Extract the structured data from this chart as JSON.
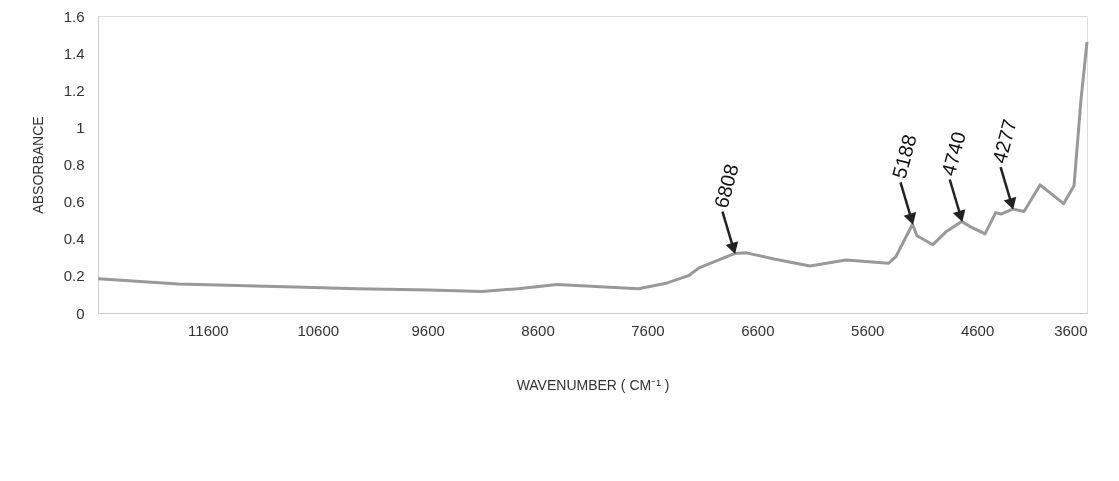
{
  "chart_data": {
    "type": "line",
    "xlabel": "WAVENUMBER ( CM⁻¹ )",
    "ylabel": "ABSORBANCE",
    "x": [
      12600,
      11867,
      10889,
      10243,
      9592,
      9106,
      8778,
      8423,
      8068,
      7681,
      7420,
      7226,
      7131,
      6808,
      6700,
      6448,
      6121,
      5793,
      5405,
      5341,
      5188,
      5147,
      5002,
      4886,
      4740,
      4659,
      4528,
      4431,
      4383,
      4277,
      4173,
      4027,
      3813,
      3718,
      3655,
      3600
    ],
    "series": [
      {
        "color": "#999999",
        "values": [
          0.185,
          0.156,
          0.141,
          0.131,
          0.124,
          0.116,
          0.131,
          0.153,
          0.143,
          0.131,
          0.162,
          0.201,
          0.243,
          0.32,
          0.324,
          0.291,
          0.253,
          0.286,
          0.268,
          0.302,
          0.478,
          0.416,
          0.368,
          0.436,
          0.493,
          0.464,
          0.426,
          0.541,
          0.533,
          0.56,
          0.547,
          0.69,
          0.589,
          0.686,
          1.148,
          1.46
        ]
      }
    ],
    "xlim": [
      12600,
      3600
    ],
    "xticks": [
      11600,
      10600,
      9600,
      8600,
      7600,
      6600,
      5600,
      4600,
      3600
    ],
    "ylim": [
      0,
      1.6
    ],
    "yticks": [
      0,
      0.2,
      0.4,
      0.6,
      0.8,
      1,
      1.2,
      1.4,
      1.6
    ],
    "grid": false,
    "annotations": [
      {
        "text": "6808",
        "x": 6808,
        "y": 0.32
      },
      {
        "text": "5188",
        "x": 5188,
        "y": 0.478
      },
      {
        "text": "4740",
        "x": 4740,
        "y": 0.493
      },
      {
        "text": "4277",
        "x": 4277,
        "y": 0.56
      }
    ]
  }
}
